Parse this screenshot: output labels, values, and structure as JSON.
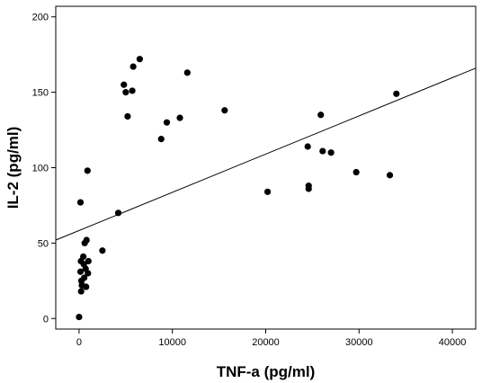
{
  "chart_data": {
    "type": "scatter",
    "xlabel": "TNF-a (pg/ml)",
    "ylabel": "IL-2 (pg/ml)",
    "xlim": [
      -2500,
      42500
    ],
    "ylim": [
      -7,
      207
    ],
    "x_ticks": [
      0,
      10000,
      20000,
      30000,
      40000
    ],
    "y_ticks": [
      0,
      50,
      100,
      150,
      200
    ],
    "x_tick_labels": [
      "0",
      "10000",
      "20000",
      "30000",
      "40000"
    ],
    "y_tick_labels": [
      "0",
      "50",
      "100",
      "150",
      "200"
    ],
    "grid": false,
    "legend": "none",
    "marker_color": "#000000",
    "points": [
      {
        "x": 0,
        "y": 1
      },
      {
        "x": 150,
        "y": 77
      },
      {
        "x": 200,
        "y": 38
      },
      {
        "x": 150,
        "y": 31
      },
      {
        "x": 250,
        "y": 25
      },
      {
        "x": 300,
        "y": 22
      },
      {
        "x": 220,
        "y": 18
      },
      {
        "x": 450,
        "y": 41
      },
      {
        "x": 500,
        "y": 36
      },
      {
        "x": 550,
        "y": 27
      },
      {
        "x": 600,
        "y": 50
      },
      {
        "x": 700,
        "y": 33
      },
      {
        "x": 750,
        "y": 21
      },
      {
        "x": 800,
        "y": 52
      },
      {
        "x": 900,
        "y": 98
      },
      {
        "x": 950,
        "y": 30
      },
      {
        "x": 1000,
        "y": 38
      },
      {
        "x": 2500,
        "y": 45
      },
      {
        "x": 4200,
        "y": 70
      },
      {
        "x": 4800,
        "y": 155
      },
      {
        "x": 5000,
        "y": 150
      },
      {
        "x": 5200,
        "y": 134
      },
      {
        "x": 5700,
        "y": 151
      },
      {
        "x": 5800,
        "y": 167
      },
      {
        "x": 6500,
        "y": 172
      },
      {
        "x": 8800,
        "y": 119
      },
      {
        "x": 9400,
        "y": 130
      },
      {
        "x": 10800,
        "y": 133
      },
      {
        "x": 11600,
        "y": 163
      },
      {
        "x": 15600,
        "y": 138
      },
      {
        "x": 20200,
        "y": 84
      },
      {
        "x": 24500,
        "y": 114
      },
      {
        "x": 24600,
        "y": 88
      },
      {
        "x": 24600,
        "y": 86
      },
      {
        "x": 25900,
        "y": 135
      },
      {
        "x": 26100,
        "y": 111
      },
      {
        "x": 27000,
        "y": 110
      },
      {
        "x": 29700,
        "y": 97
      },
      {
        "x": 33300,
        "y": 95
      },
      {
        "x": 34000,
        "y": 149
      }
    ],
    "fit_line": {
      "x": [
        -2500,
        42500
      ],
      "y": [
        52,
        166
      ]
    }
  }
}
